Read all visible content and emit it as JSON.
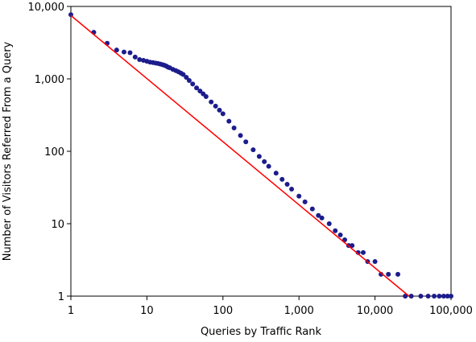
{
  "chart_data": {
    "type": "scatter",
    "title": "",
    "xlabel": "Queries by Traffic Rank",
    "ylabel": "Number of Visitors Referred From a Query",
    "x_scale": "log",
    "y_scale": "log",
    "xlim": [
      1,
      100000
    ],
    "ylim": [
      1,
      10000
    ],
    "x_ticks": [
      1,
      10,
      100,
      1000,
      10000,
      100000
    ],
    "x_tick_labels": [
      "1",
      "10",
      "100",
      "1,000",
      "10,000",
      "100,000"
    ],
    "y_ticks": [
      1,
      10,
      100,
      1000,
      10000
    ],
    "y_tick_labels": [
      "1",
      "10",
      "100",
      "1,000",
      "10,000"
    ],
    "grid": false,
    "colors": {
      "points": "#1c1c8c",
      "fit_line": "#ff0000",
      "frame": "#000000"
    },
    "points": [
      [
        1,
        7700
      ],
      [
        2,
        4400
      ],
      [
        3,
        3100
      ],
      [
        4,
        2500
      ],
      [
        5,
        2350
      ],
      [
        6,
        2300
      ],
      [
        7,
        2000
      ],
      [
        8,
        1850
      ],
      [
        9,
        1800
      ],
      [
        10,
        1750
      ],
      [
        11,
        1700
      ],
      [
        12,
        1680
      ],
      [
        13,
        1650
      ],
      [
        14,
        1630
      ],
      [
        15,
        1600
      ],
      [
        16,
        1570
      ],
      [
        17,
        1540
      ],
      [
        18,
        1500
      ],
      [
        19,
        1450
      ],
      [
        20,
        1420
      ],
      [
        22,
        1350
      ],
      [
        24,
        1300
      ],
      [
        26,
        1250
      ],
      [
        28,
        1200
      ],
      [
        30,
        1150
      ],
      [
        33,
        1050
      ],
      [
        36,
        950
      ],
      [
        40,
        850
      ],
      [
        45,
        750
      ],
      [
        50,
        680
      ],
      [
        55,
        620
      ],
      [
        60,
        570
      ],
      [
        70,
        480
      ],
      [
        80,
        420
      ],
      [
        90,
        370
      ],
      [
        100,
        330
      ],
      [
        120,
        260
      ],
      [
        140,
        210
      ],
      [
        170,
        165
      ],
      [
        200,
        135
      ],
      [
        250,
        105
      ],
      [
        300,
        85
      ],
      [
        350,
        72
      ],
      [
        400,
        62
      ],
      [
        500,
        50
      ],
      [
        600,
        41
      ],
      [
        700,
        35
      ],
      [
        800,
        30
      ],
      [
        1000,
        24
      ],
      [
        1200,
        20
      ],
      [
        1500,
        16
      ],
      [
        1800,
        13
      ],
      [
        2000,
        12
      ],
      [
        2500,
        10
      ],
      [
        3000,
        8
      ],
      [
        3500,
        7
      ],
      [
        4000,
        6
      ],
      [
        4500,
        5
      ],
      [
        5000,
        5
      ],
      [
        6000,
        4
      ],
      [
        7000,
        4
      ],
      [
        8000,
        3
      ],
      [
        10000,
        3
      ],
      [
        12000,
        2
      ],
      [
        15000,
        2
      ],
      [
        20000,
        2
      ],
      [
        25000,
        1
      ],
      [
        30000,
        1
      ],
      [
        40000,
        1
      ],
      [
        50000,
        1
      ],
      [
        60000,
        1
      ],
      [
        70000,
        1
      ],
      [
        80000,
        1
      ],
      [
        90000,
        1
      ],
      [
        100000,
        1
      ]
    ],
    "fit_line": {
      "x": [
        1,
        28000
      ],
      "y": [
        7500,
        1
      ]
    }
  }
}
